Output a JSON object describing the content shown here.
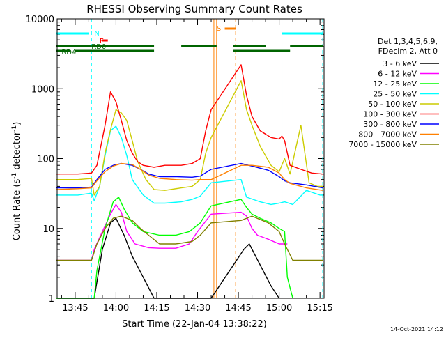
{
  "chart_data": {
    "type": "line",
    "title": "RHESSI Observing Summary Count Rates",
    "xlabel": "Start Time (22-Jan-04 13:38:22)",
    "ylabel": "Count Rate (s",
    "ylabel_sup": "-1",
    "ylabel_mid": " detector",
    "ylabel_sup2": "-1",
    "ylabel_end": ")",
    "ylim": [
      1,
      10000
    ],
    "yscale": "log",
    "xlim": [
      "13:38:22",
      "15:16:30"
    ],
    "x_ticks": [
      "13:45",
      "14:00",
      "14:15",
      "14:30",
      "14:45",
      "15:00",
      "15:15"
    ],
    "y_ticks": [
      "1",
      "10",
      "100",
      "1000",
      "10000"
    ],
    "timestamp": "14-Oct-2021 14:12",
    "legend_header": [
      "Det 1,3,4,5,6,9,",
      "FDecim 2, Att 0"
    ],
    "legend_position": "right",
    "series": [
      {
        "name": "3 - 6 keV",
        "color": "#000000",
        "points": [
          [
            "13:38",
            1
          ],
          [
            "13:52",
            1
          ],
          [
            "13:55",
            5
          ],
          [
            "13:58",
            12
          ],
          [
            "14:00",
            14
          ],
          [
            "14:03",
            8
          ],
          [
            "14:06",
            4
          ],
          [
            "14:10",
            2
          ],
          [
            "14:14",
            1
          ],
          [
            "14:30",
            1
          ],
          [
            "14:35",
            1
          ],
          [
            "14:47",
            5
          ],
          [
            "14:49",
            6
          ],
          [
            "14:53",
            3
          ],
          [
            "14:57",
            1.5
          ],
          [
            "15:00",
            1
          ]
        ]
      },
      {
        "name": "6 - 12 keV",
        "color": "#ff00ff",
        "points": [
          [
            "13:38",
            3.5
          ],
          [
            "13:51",
            3.5
          ],
          [
            "13:52",
            5
          ],
          [
            "13:55",
            9
          ],
          [
            "13:58",
            16
          ],
          [
            "14:00",
            22
          ],
          [
            "14:02",
            17
          ],
          [
            "14:04",
            9
          ],
          [
            "14:07",
            6
          ],
          [
            "14:12",
            5.3
          ],
          [
            "14:16",
            5.2
          ],
          [
            "14:22",
            5.2
          ],
          [
            "14:27",
            6
          ],
          [
            "14:30",
            9
          ],
          [
            "14:35",
            16
          ],
          [
            "14:46",
            17
          ],
          [
            "14:48",
            15
          ],
          [
            "14:50",
            10
          ],
          [
            "14:52",
            8
          ],
          [
            "14:56",
            7
          ],
          [
            "15:00",
            6
          ],
          [
            "15:03",
            6
          ]
        ]
      },
      {
        "name": "12 - 25 keV",
        "color": "#00ff00",
        "points": [
          [
            "13:38",
            1
          ],
          [
            "13:52",
            1
          ],
          [
            "13:53",
            2.5
          ],
          [
            "13:56",
            10
          ],
          [
            "13:59",
            24
          ],
          [
            "14:01",
            28
          ],
          [
            "14:03",
            19
          ],
          [
            "14:06",
            12
          ],
          [
            "14:10",
            9
          ],
          [
            "14:16",
            8
          ],
          [
            "14:22",
            8
          ],
          [
            "14:27",
            9
          ],
          [
            "14:31",
            12
          ],
          [
            "14:35",
            21
          ],
          [
            "14:46",
            26
          ],
          [
            "14:48",
            20
          ],
          [
            "14:50",
            16
          ],
          [
            "14:53",
            14
          ],
          [
            "14:57",
            12
          ],
          [
            "15:00",
            10
          ],
          [
            "15:02",
            9
          ],
          [
            "15:03",
            2
          ],
          [
            "15:05",
            1
          ]
        ]
      },
      {
        "name": "25 - 50 keV",
        "color": "#00ffff",
        "points": [
          [
            "13:38",
            30
          ],
          [
            "13:46",
            30
          ],
          [
            "13:51",
            32
          ],
          [
            "13:52",
            25
          ],
          [
            "13:54",
            40
          ],
          [
            "13:56",
            110
          ],
          [
            "13:58",
            250
          ],
          [
            "14:00",
            290
          ],
          [
            "14:02",
            200
          ],
          [
            "14:04",
            110
          ],
          [
            "14:06",
            50
          ],
          [
            "14:10",
            30
          ],
          [
            "14:14",
            23
          ],
          [
            "14:18",
            23
          ],
          [
            "14:24",
            24
          ],
          [
            "14:28",
            26
          ],
          [
            "14:31",
            29
          ],
          [
            "14:35",
            45
          ],
          [
            "14:46",
            50
          ],
          [
            "14:48",
            28
          ],
          [
            "14:53",
            24
          ],
          [
            "14:57",
            22
          ],
          [
            "15:00",
            23
          ],
          [
            "15:02",
            24
          ],
          [
            "15:05",
            22
          ],
          [
            "15:10",
            35
          ],
          [
            "15:15",
            30
          ],
          [
            "15:16",
            30
          ]
        ]
      },
      {
        "name": "50 - 100 keV",
        "color": "#cccc00",
        "points": [
          [
            "13:38",
            50
          ],
          [
            "13:46",
            50
          ],
          [
            "13:51",
            52
          ],
          [
            "13:52",
            30
          ],
          [
            "13:54",
            40
          ],
          [
            "13:56",
            120
          ],
          [
            "13:58",
            260
          ],
          [
            "14:00",
            500
          ],
          [
            "14:02",
            450
          ],
          [
            "14:04",
            350
          ],
          [
            "14:06",
            180
          ],
          [
            "14:08",
            90
          ],
          [
            "14:11",
            50
          ],
          [
            "14:14",
            36
          ],
          [
            "14:18",
            35
          ],
          [
            "14:24",
            38
          ],
          [
            "14:28",
            40
          ],
          [
            "14:31",
            50
          ],
          [
            "14:33",
            120
          ],
          [
            "14:35",
            200
          ],
          [
            "14:46",
            1300
          ],
          [
            "14:48",
            500
          ],
          [
            "14:50",
            300
          ],
          [
            "14:53",
            150
          ],
          [
            "14:57",
            80
          ],
          [
            "15:00",
            65
          ],
          [
            "15:02",
            100
          ],
          [
            "15:04",
            60
          ],
          [
            "15:08",
            300
          ],
          [
            "15:11",
            45
          ],
          [
            "15:14",
            40
          ],
          [
            "15:16",
            40
          ]
        ]
      },
      {
        "name": "100 - 300 keV",
        "color": "#ff0000",
        "points": [
          [
            "13:38",
            60
          ],
          [
            "13:46",
            60
          ],
          [
            "13:51",
            62
          ],
          [
            "13:53",
            80
          ],
          [
            "13:56",
            300
          ],
          [
            "13:58",
            900
          ],
          [
            "14:00",
            650
          ],
          [
            "14:02",
            350
          ],
          [
            "14:04",
            180
          ],
          [
            "14:06",
            120
          ],
          [
            "14:08",
            90
          ],
          [
            "14:10",
            80
          ],
          [
            "14:14",
            75
          ],
          [
            "14:18",
            80
          ],
          [
            "14:24",
            80
          ],
          [
            "14:28",
            85
          ],
          [
            "14:31",
            100
          ],
          [
            "14:33",
            250
          ],
          [
            "14:35",
            500
          ],
          [
            "14:46",
            2200
          ],
          [
            "14:48",
            800
          ],
          [
            "14:50",
            400
          ],
          [
            "14:53",
            250
          ],
          [
            "14:57",
            200
          ],
          [
            "15:00",
            190
          ],
          [
            "15:01",
            210
          ],
          [
            "15:02",
            180
          ],
          [
            "15:04",
            80
          ],
          [
            "15:08",
            70
          ],
          [
            "15:12",
            62
          ],
          [
            "15:16",
            60
          ]
        ]
      },
      {
        "name": "300 - 800 keV",
        "color": "#0000ff",
        "points": [
          [
            "13:38",
            38
          ],
          [
            "13:46",
            38
          ],
          [
            "13:51",
            39
          ],
          [
            "13:53",
            50
          ],
          [
            "13:56",
            70
          ],
          [
            "13:59",
            80
          ],
          [
            "14:02",
            85
          ],
          [
            "14:06",
            80
          ],
          [
            "14:09",
            70
          ],
          [
            "14:12",
            60
          ],
          [
            "14:16",
            55
          ],
          [
            "14:22",
            55
          ],
          [
            "14:28",
            54
          ],
          [
            "14:31",
            56
          ],
          [
            "14:35",
            70
          ],
          [
            "14:46",
            85
          ],
          [
            "14:50",
            78
          ],
          [
            "14:56",
            68
          ],
          [
            "15:00",
            55
          ],
          [
            "15:02",
            48
          ],
          [
            "15:04",
            45
          ],
          [
            "15:10",
            42
          ],
          [
            "15:16",
            38
          ]
        ]
      },
      {
        "name": "800 - 7000 keV",
        "color": "#ff8000",
        "points": [
          [
            "13:38",
            36
          ],
          [
            "13:46",
            37
          ],
          [
            "13:51",
            38
          ],
          [
            "13:53",
            48
          ],
          [
            "13:56",
            65
          ],
          [
            "13:59",
            78
          ],
          [
            "14:02",
            85
          ],
          [
            "14:06",
            82
          ],
          [
            "14:09",
            70
          ],
          [
            "14:12",
            58
          ],
          [
            "14:16",
            52
          ],
          [
            "14:22",
            50
          ],
          [
            "14:28",
            49
          ],
          [
            "14:31",
            50
          ],
          [
            "14:35",
            50
          ],
          [
            "14:46",
            80
          ],
          [
            "14:50",
            80
          ],
          [
            "14:56",
            75
          ],
          [
            "15:00",
            62
          ],
          [
            "15:02",
            50
          ],
          [
            "15:04",
            44
          ],
          [
            "15:10",
            38
          ],
          [
            "15:16",
            35
          ]
        ]
      },
      {
        "name": "7000 - 15000 keV",
        "color": "#808000",
        "points": [
          [
            "13:38",
            3.5
          ],
          [
            "13:46",
            3.5
          ],
          [
            "13:51",
            3.5
          ],
          [
            "13:53",
            6
          ],
          [
            "13:56",
            10
          ],
          [
            "13:59",
            14
          ],
          [
            "14:02",
            15
          ],
          [
            "14:06",
            13
          ],
          [
            "14:09",
            10
          ],
          [
            "14:12",
            8
          ],
          [
            "14:16",
            6
          ],
          [
            "14:22",
            6
          ],
          [
            "14:28",
            6.5
          ],
          [
            "14:31",
            8
          ],
          [
            "14:35",
            12
          ],
          [
            "14:46",
            13
          ],
          [
            "14:50",
            15
          ],
          [
            "14:56",
            12
          ],
          [
            "15:00",
            9
          ],
          [
            "15:02",
            6
          ],
          [
            "15:05",
            3.5
          ],
          [
            "15:16",
            3.5
          ]
        ]
      }
    ],
    "flag_bars": [
      {
        "label": "N",
        "color": "#00ffff",
        "row": "top"
      },
      {
        "label": "F",
        "color": "#ff0000",
        "row": "f"
      },
      {
        "label": "RD0",
        "color": "#006400",
        "row": "rd0"
      },
      {
        "label": "RD4",
        "color": "#006400",
        "row": "rd4"
      },
      {
        "label": "S",
        "color": "#ff8000",
        "row": "s"
      }
    ],
    "vertical_markers": [
      {
        "time": "13:51",
        "color": "#00ffff",
        "style": "dashed"
      },
      {
        "time": "14:36",
        "color": "#ff8000",
        "style": "solid"
      },
      {
        "time": "14:37",
        "color": "#ff8000",
        "style": "solid"
      },
      {
        "time": "14:44",
        "color": "#ff8000",
        "style": "dashed"
      },
      {
        "time": "15:01",
        "color": "#00ffff",
        "style": "solid"
      },
      {
        "time": "15:16",
        "color": "#00ffff",
        "style": "dashed"
      }
    ]
  }
}
